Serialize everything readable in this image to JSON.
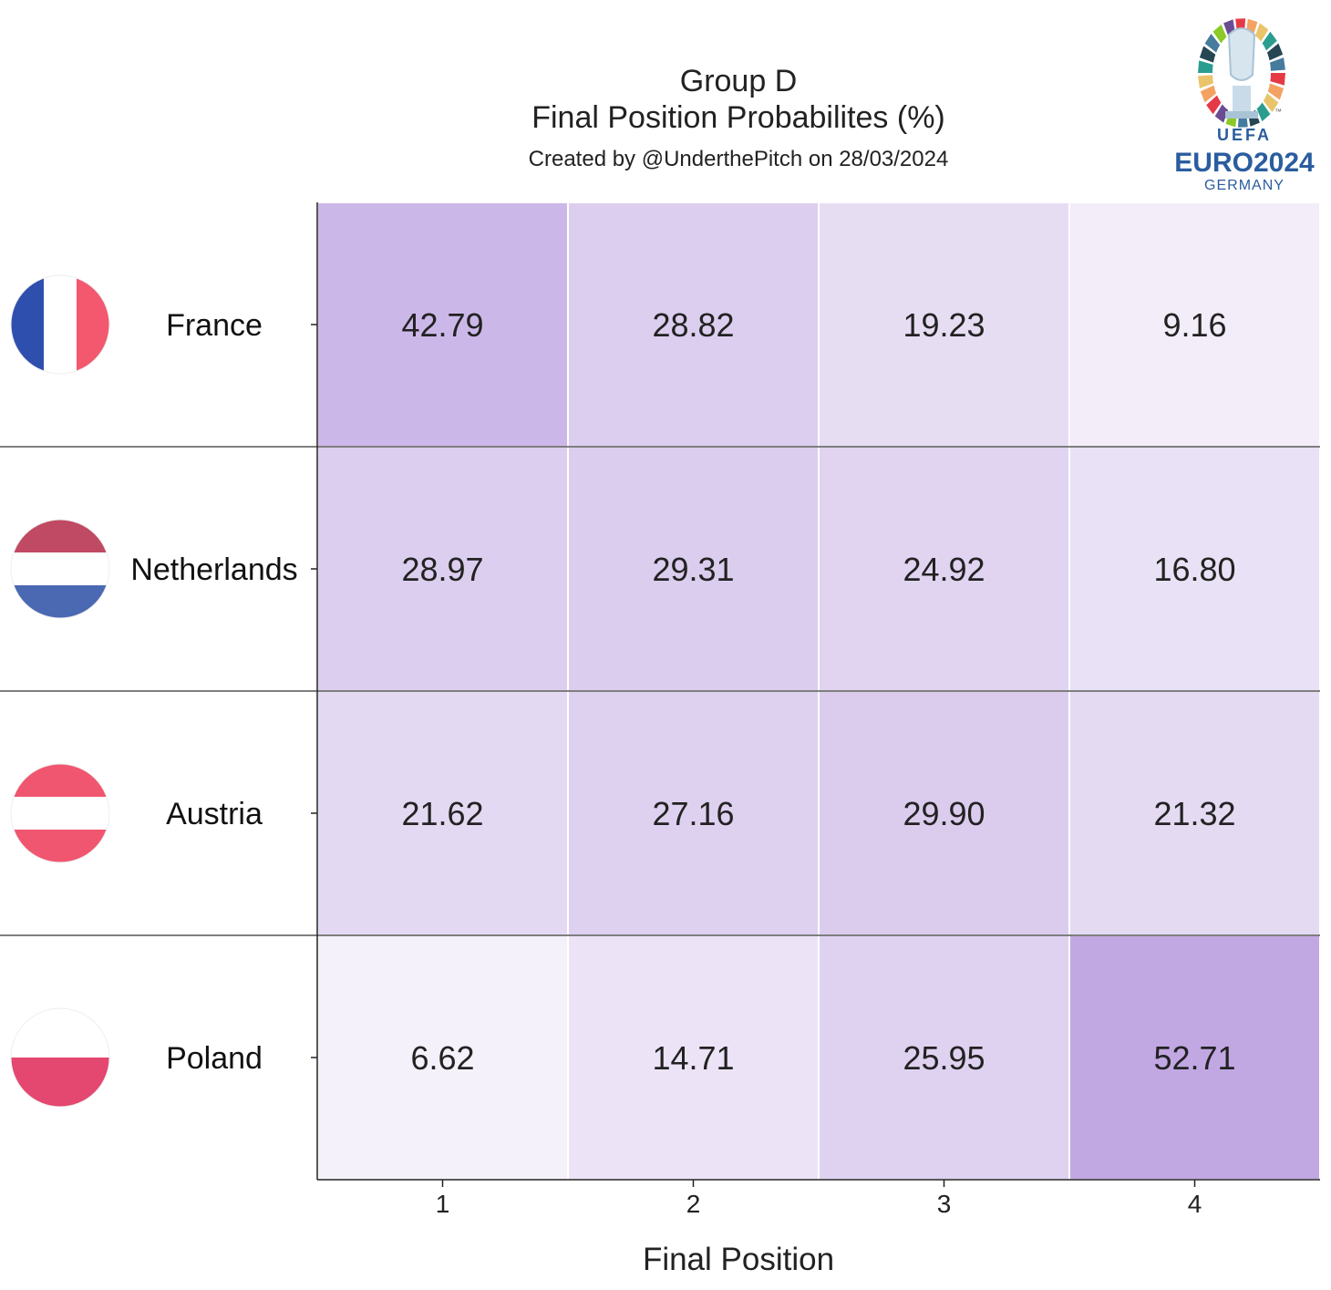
{
  "logo": {
    "org": "UEFA",
    "event": "EURO2024",
    "host": "GERMANY",
    "tm": "™",
    "colors": [
      "#e63946",
      "#f4a261",
      "#e9c46a",
      "#2a9d8f",
      "#264653",
      "#457b9d",
      "#8ac926",
      "#6a4c93"
    ]
  },
  "chart_data": {
    "type": "heatmap",
    "title": "Group D",
    "subtitle": "Final Position Probabilites (%)",
    "credit": "Created by @UnderthePitch on 28/03/2024",
    "xlabel": "Final Position",
    "ylabel": "",
    "x_categories": [
      "1",
      "2",
      "3",
      "4"
    ],
    "y_categories": [
      "France",
      "Netherlands",
      "Austria",
      "Poland"
    ],
    "values": [
      [
        42.79,
        28.82,
        19.23,
        9.16
      ],
      [
        28.97,
        29.31,
        24.92,
        16.8
      ],
      [
        21.62,
        27.16,
        29.9,
        21.32
      ],
      [
        6.62,
        14.71,
        25.95,
        52.71
      ]
    ],
    "value_labels": [
      [
        "42.79",
        "28.82",
        "19.23",
        "9.16"
      ],
      [
        "28.97",
        "29.31",
        "24.92",
        "16.80"
      ],
      [
        "21.62",
        "27.16",
        "29.90",
        "21.32"
      ],
      [
        "6.62",
        "14.71",
        "25.95",
        "52.71"
      ]
    ],
    "value_range": [
      0,
      60
    ],
    "color_low": "#fcfbfd",
    "color_high": "#b99ddf",
    "flags": [
      {
        "country": "France",
        "style": "vertical",
        "colors": [
          "#2f4fae",
          "#ffffff",
          "#f3586f"
        ]
      },
      {
        "country": "Netherlands",
        "style": "horizontal",
        "colors": [
          "#c04a63",
          "#ffffff",
          "#4b68b3"
        ]
      },
      {
        "country": "Austria",
        "style": "horizontal",
        "colors": [
          "#f0566f",
          "#ffffff",
          "#f0566f"
        ]
      },
      {
        "country": "Poland",
        "style": "horizontal2",
        "colors": [
          "#ffffff",
          "#e4476f"
        ]
      }
    ],
    "grid": false
  }
}
